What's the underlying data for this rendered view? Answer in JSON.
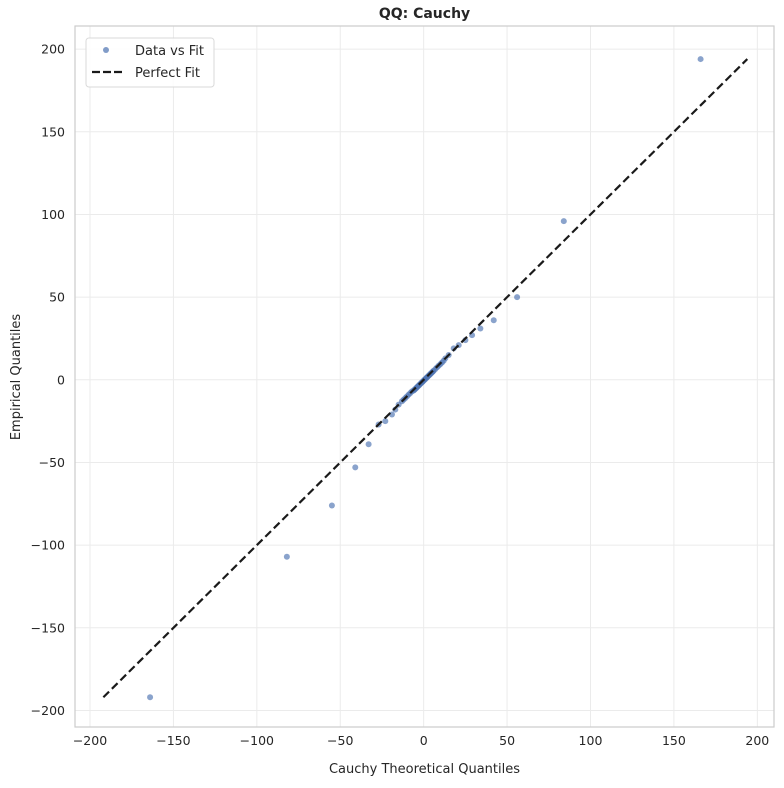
{
  "chart_data": {
    "type": "scatter",
    "title": "QQ: Cauchy",
    "xlabel": "Cauchy Theoretical Quantiles",
    "ylabel": "Empirical Quantiles",
    "xlim": [
      -209,
      210
    ],
    "ylim": [
      -210,
      214
    ],
    "xticks": [
      -200,
      -150,
      -100,
      -50,
      0,
      50,
      100,
      150,
      200
    ],
    "yticks": [
      -200,
      -150,
      -100,
      -50,
      0,
      50,
      100,
      150,
      200
    ],
    "grid": true,
    "legend_placement": "top-left",
    "series": [
      {
        "name": "Data vs Fit",
        "kind": "points",
        "color": "#4c72b0",
        "x": [
          -164,
          -82,
          -55,
          -41,
          -33,
          -27,
          -23,
          -19,
          -17,
          -15,
          -13,
          -12,
          -11,
          -10,
          -9,
          -8,
          -7,
          -6,
          -5.5,
          -5,
          -4.5,
          -4,
          -3.5,
          -3,
          -2.5,
          -2,
          -1.5,
          -1,
          -0.5,
          0,
          0.5,
          1,
          1.5,
          2,
          2.5,
          3,
          3.5,
          4,
          4.5,
          5,
          5.5,
          6,
          7,
          8,
          9,
          10,
          11,
          12,
          13,
          15,
          18,
          21,
          25,
          29,
          34,
          42,
          56,
          84,
          166
        ],
        "y": [
          -192,
          -107,
          -76,
          -53,
          -39,
          -27,
          -25,
          -21,
          -18,
          -15,
          -13,
          -12,
          -11,
          -10,
          -9,
          -8,
          -7,
          -6.5,
          -6,
          -5.5,
          -5,
          -4.5,
          -4,
          -3.5,
          -3,
          -2.5,
          -2,
          -1.5,
          -1,
          -0.5,
          0,
          0.5,
          1,
          1.5,
          2,
          2.5,
          3,
          3.5,
          4,
          4.5,
          5,
          5.5,
          6.5,
          7.5,
          8.5,
          9.5,
          10.5,
          11.5,
          13,
          15,
          19,
          21,
          24,
          27,
          31,
          36,
          50,
          96,
          194
        ]
      },
      {
        "name": "Perfect Fit",
        "kind": "dashed-line",
        "color": "#1a1a1a",
        "x": [
          -192,
          194
        ],
        "y": [
          -192,
          194
        ]
      }
    ]
  }
}
